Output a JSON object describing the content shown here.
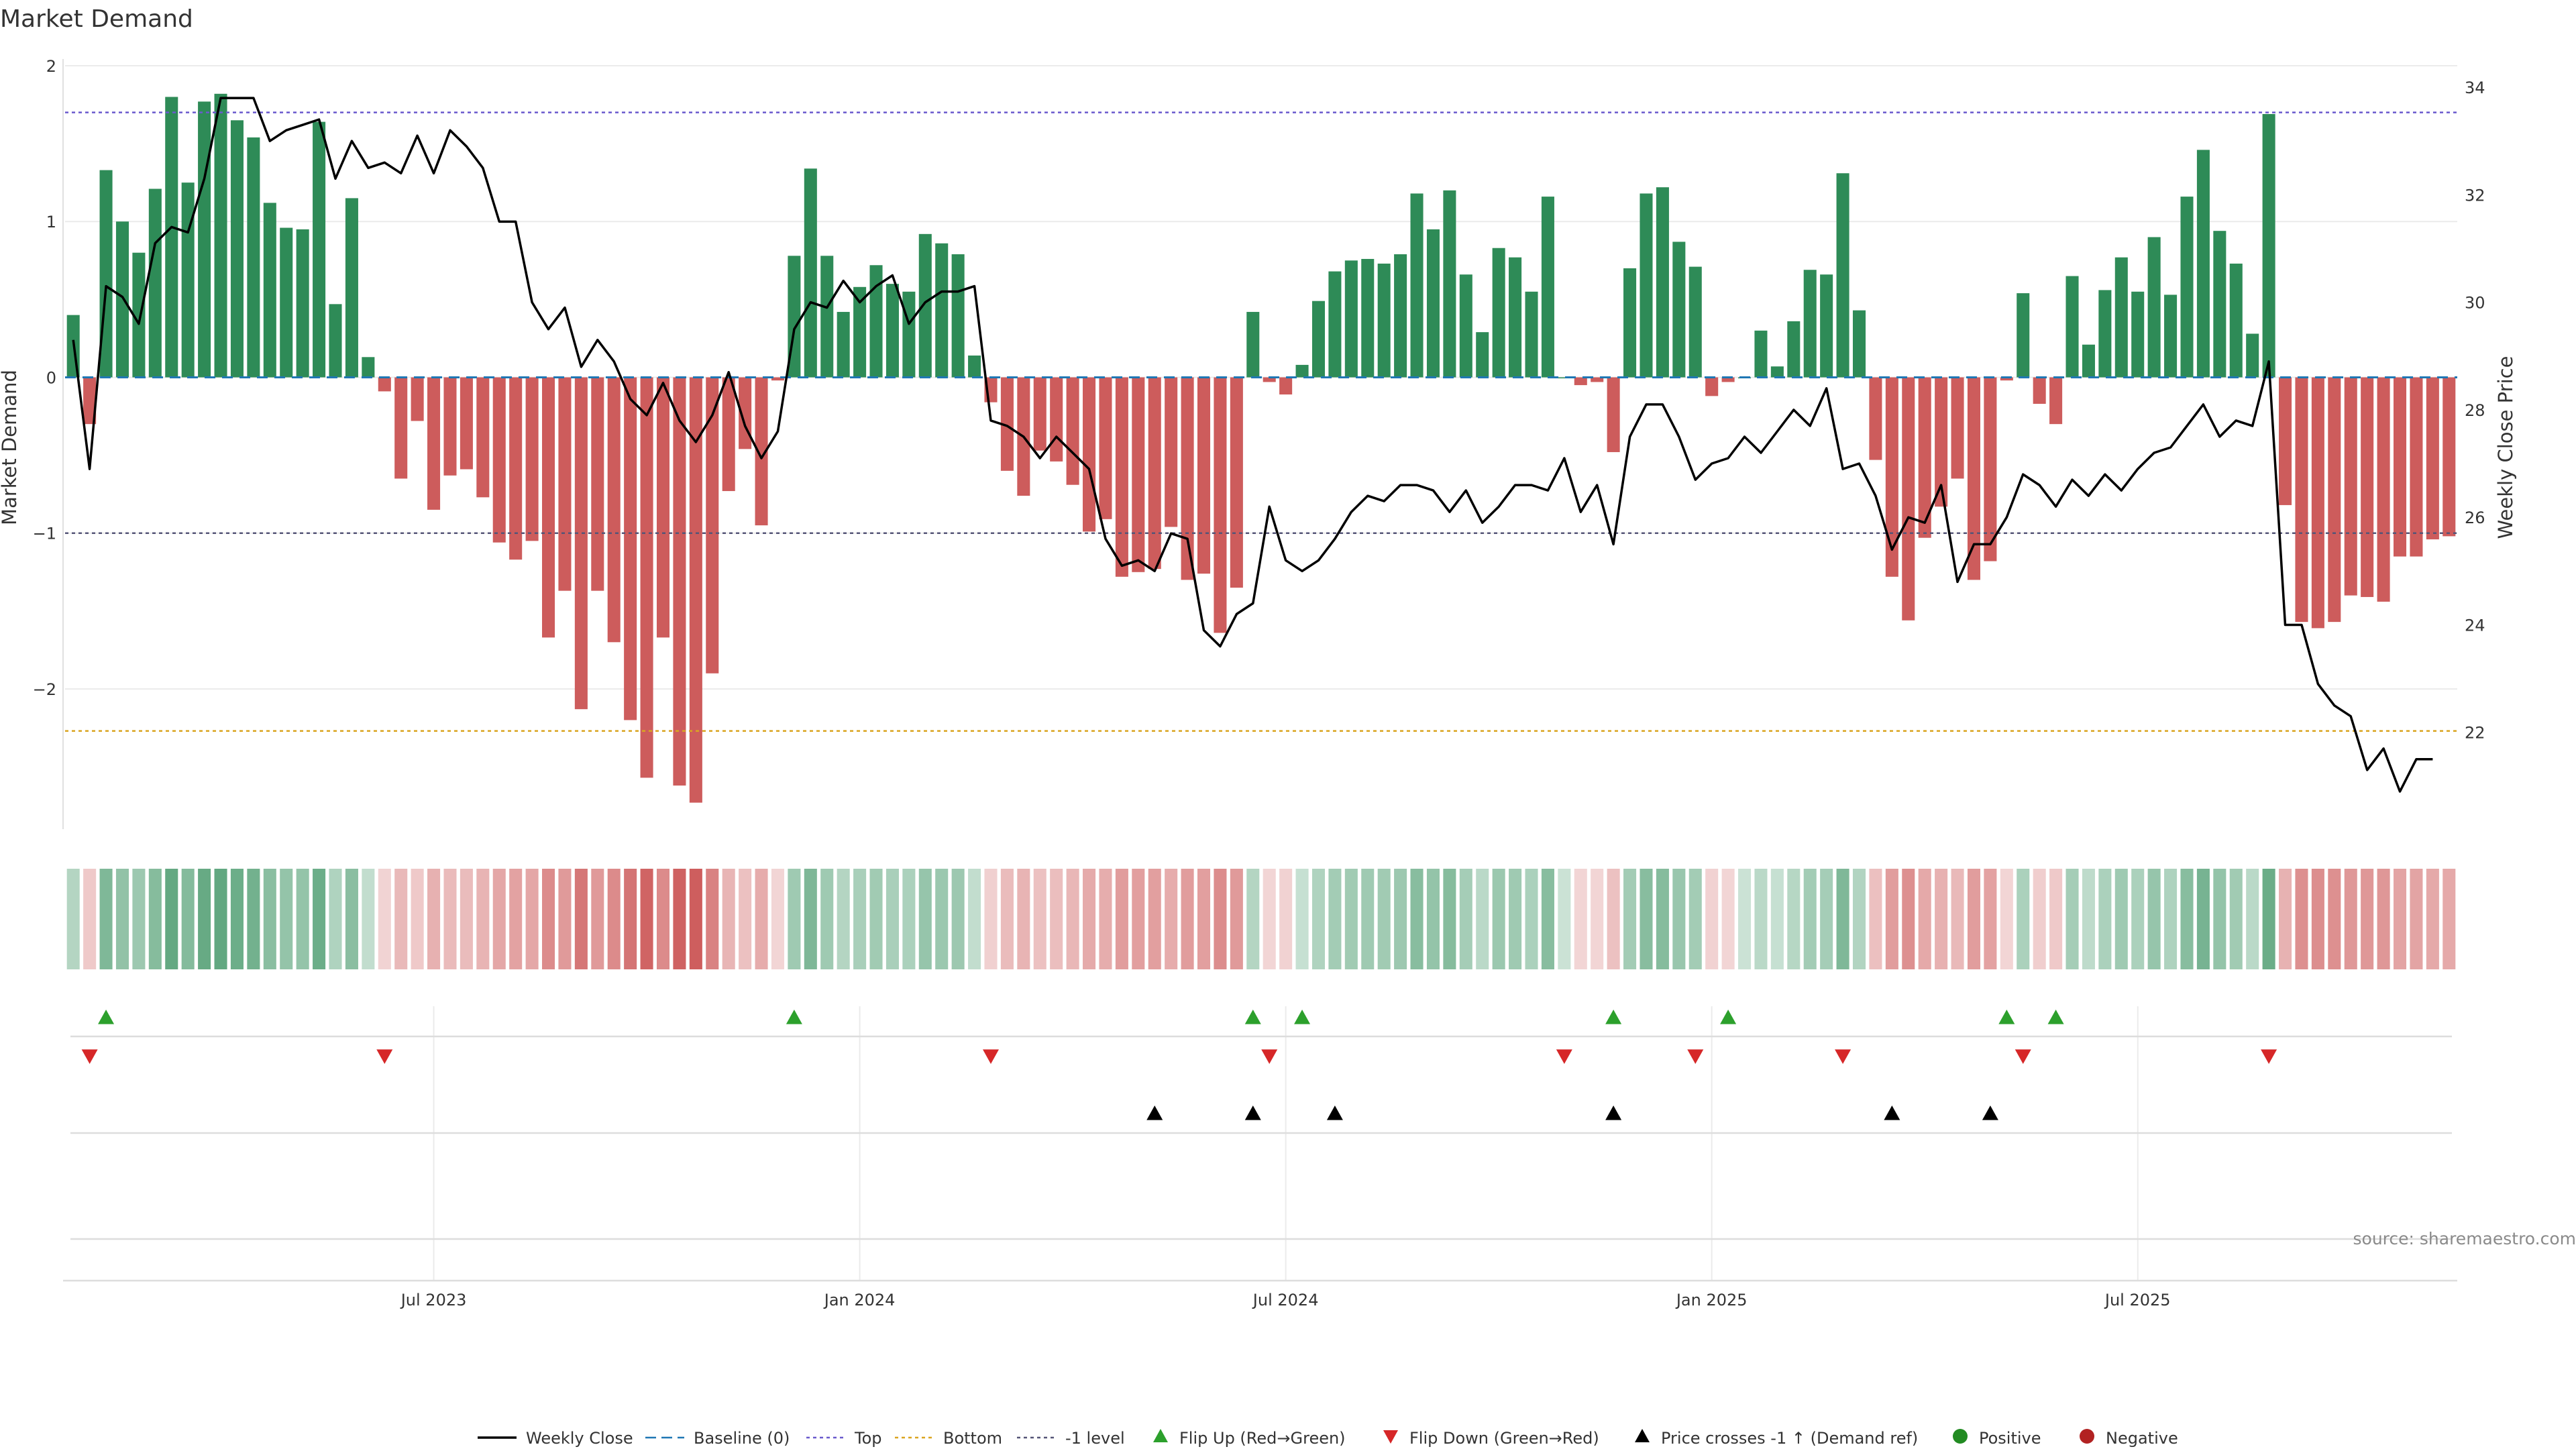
{
  "chart_data": {
    "type": "bar",
    "title": "Market Demand",
    "ylabel_left": "Market Demand",
    "ylabel_right": "Weekly Close Price",
    "ylim_left": [
      -2.9,
      2.0
    ],
    "ylim_right": [
      20.2,
      34.4
    ],
    "yticks_left": [
      2,
      1,
      0,
      -1,
      -2
    ],
    "yticks_left_labels": [
      "2",
      "1",
      "0",
      "−1",
      "−2"
    ],
    "yticks_right": [
      34,
      32,
      30,
      28,
      26,
      24,
      22
    ],
    "xticks": [
      22,
      48,
      74,
      100,
      126
    ],
    "xtick_labels": [
      "Jul 2023",
      "Jan 2024",
      "Jul 2024",
      "Jan 2025",
      "Jul 2025"
    ],
    "levels": {
      "top": 1.7,
      "bottom": -2.27,
      "minus_one": -1.0,
      "baseline": 0
    },
    "demand": [
      0.4,
      -0.3,
      1.33,
      1.0,
      0.8,
      1.21,
      1.8,
      1.25,
      1.77,
      1.82,
      1.65,
      1.54,
      1.12,
      0.96,
      0.95,
      1.64,
      0.47,
      1.15,
      0.13,
      -0.09,
      -0.65,
      -0.28,
      -0.85,
      -0.63,
      -0.59,
      -0.77,
      -1.06,
      -1.17,
      -1.05,
      -1.67,
      -1.37,
      -2.13,
      -1.37,
      -1.7,
      -2.2,
      -2.57,
      -1.67,
      -2.62,
      -2.73,
      -1.9,
      -0.73,
      -0.46,
      -0.95,
      -0.02,
      0.78,
      1.34,
      0.78,
      0.42,
      0.58,
      0.72,
      0.6,
      0.55,
      0.92,
      0.86,
      0.79,
      0.14,
      -0.16,
      -0.6,
      -0.76,
      -0.47,
      -0.54,
      -0.69,
      -0.99,
      -0.91,
      -1.28,
      -1.25,
      -1.23,
      -0.96,
      -1.3,
      -1.26,
      -1.64,
      -1.35,
      0.42,
      -0.03,
      -0.11,
      0.08,
      0.49,
      0.68,
      0.75,
      0.76,
      0.73,
      0.79,
      1.18,
      0.95,
      1.2,
      0.66,
      0.29,
      0.83,
      0.77,
      0.55,
      1.16,
      0.0,
      -0.05,
      -0.03,
      -0.48,
      0.7,
      1.18,
      1.22,
      0.87,
      0.71,
      -0.12,
      -0.03,
      0.0,
      0.3,
      0.07,
      0.36,
      0.69,
      0.66,
      1.31,
      0.43,
      -0.53,
      -1.28,
      -1.56,
      -1.03,
      -0.83,
      -0.65,
      -1.3,
      -1.18,
      -0.02,
      0.54,
      -0.17,
      -0.3,
      0.65,
      0.21,
      0.56,
      0.77,
      0.55,
      0.9,
      0.53,
      1.16,
      1.46,
      0.94,
      0.73,
      0.28,
      1.69,
      -0.82,
      -1.57,
      -1.61,
      -1.57,
      -1.4,
      -1.41,
      -1.44,
      -1.15,
      -1.15,
      -1.04,
      -1.02
    ],
    "close": [
      29.3,
      26.9,
      30.3,
      30.1,
      29.6,
      31.1,
      31.4,
      31.3,
      32.3,
      33.8,
      33.8,
      33.8,
      33.0,
      33.2,
      33.3,
      33.4,
      32.3,
      33.0,
      32.5,
      32.6,
      32.4,
      33.1,
      32.4,
      33.2,
      32.9,
      32.5,
      31.5,
      31.5,
      30.0,
      29.5,
      29.9,
      28.8,
      29.3,
      28.9,
      28.2,
      27.9,
      28.5,
      27.8,
      27.4,
      27.9,
      28.7,
      27.7,
      27.1,
      27.6,
      29.5,
      30.0,
      29.9,
      30.4,
      30.0,
      30.3,
      30.5,
      29.6,
      30.0,
      30.2,
      30.2,
      30.3,
      27.8,
      27.7,
      27.5,
      27.1,
      27.5,
      27.2,
      26.9,
      25.6,
      25.1,
      25.2,
      25.0,
      25.7,
      25.6,
      23.9,
      23.6,
      24.2,
      24.4,
      26.2,
      25.2,
      25.0,
      25.2,
      25.6,
      26.1,
      26.4,
      26.3,
      26.6,
      26.6,
      26.5,
      26.1,
      26.5,
      25.9,
      26.2,
      26.6,
      26.6,
      26.5,
      27.1,
      26.1,
      26.6,
      25.5,
      27.5,
      28.1,
      28.1,
      27.5,
      26.7,
      27.0,
      27.1,
      27.5,
      27.2,
      27.6,
      28.0,
      27.7,
      28.4,
      26.9,
      27.0,
      26.4,
      25.4,
      26.0,
      25.9,
      26.6,
      24.8,
      25.5,
      25.5,
      26.0,
      26.8,
      26.6,
      26.2,
      26.7,
      26.4,
      26.8,
      26.5,
      26.9,
      27.2,
      27.3,
      27.7,
      28.1,
      27.5,
      27.8,
      27.7,
      28.9,
      24.0,
      24.0,
      22.9,
      22.5,
      22.3,
      21.3,
      21.7,
      20.9,
      21.5,
      21.5
    ],
    "flip_up": [
      2,
      44,
      72,
      75,
      94,
      101,
      118,
      121
    ],
    "flip_down": [
      1,
      19,
      56,
      73,
      91,
      99,
      108,
      119,
      134
    ],
    "price_cross": [
      66,
      72,
      77,
      94,
      111,
      117
    ],
    "legend": [
      "Weekly Close",
      "Baseline (0)",
      "Top",
      "Bottom",
      "-1 level",
      "Flip Up (Red→Green)",
      "Flip Down (Green→Red)",
      "Price crosses -1 ↑ (Demand ref)",
      "Positive",
      "Negative"
    ],
    "source": "source: sharemaestro.com"
  },
  "colors": {
    "positive": "#2e8b57",
    "negative": "#cd5c5c",
    "line": "#000000",
    "baseline": "#1f77b4",
    "top": "#6a5acd",
    "bottom": "#daa520",
    "minus_one": "#555577",
    "flip_up": "#2ca02c",
    "flip_down": "#d62728",
    "legend_positive": "#228b22",
    "legend_negative": "#b22222"
  }
}
